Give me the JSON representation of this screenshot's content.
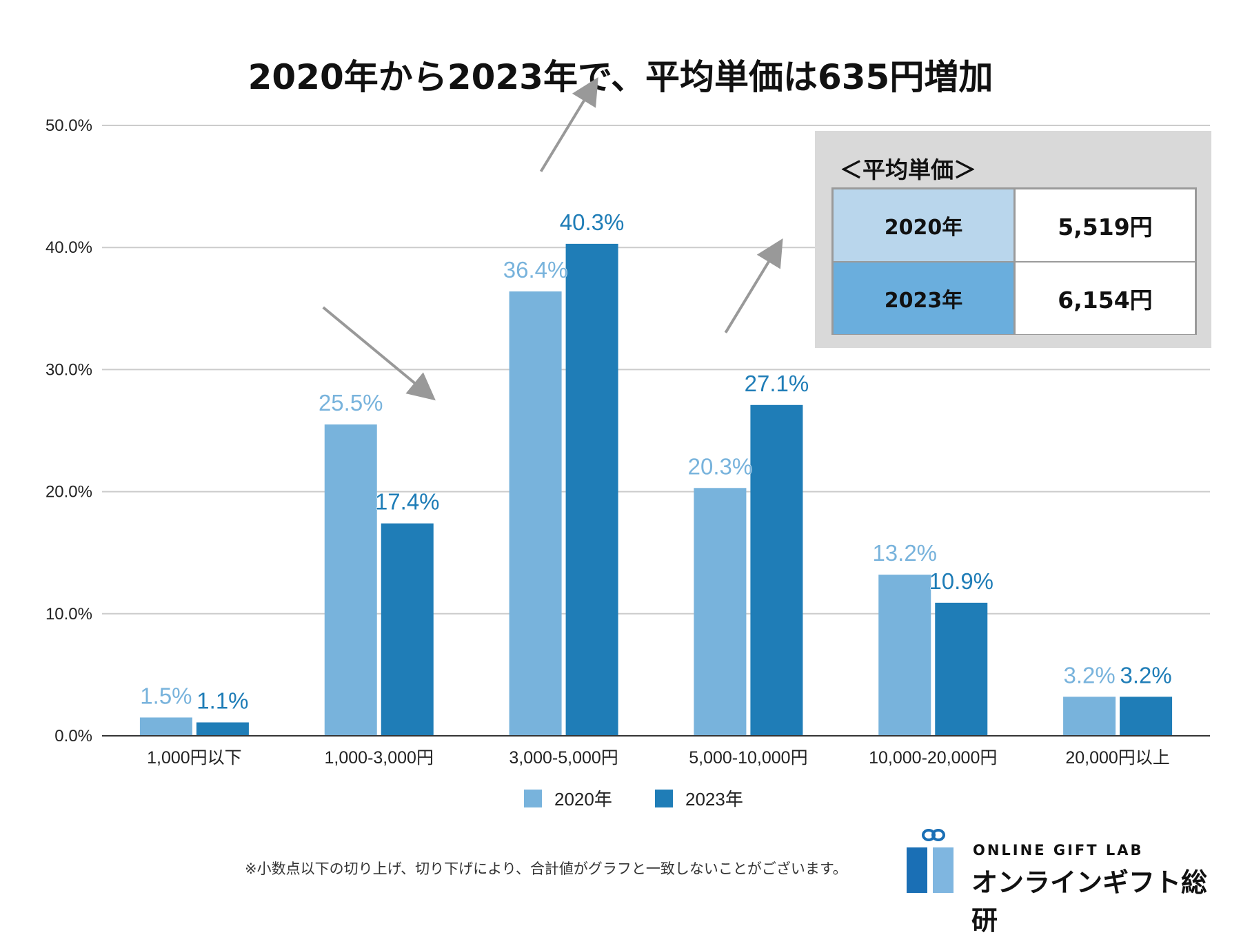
{
  "title": "2020年から2023年で、平均単価は635円増加",
  "chart_data": {
    "type": "bar",
    "title": "2020年から2023年で、平均単価は635円増加",
    "xlabel": "",
    "ylabel": "",
    "ylim": [
      0,
      50
    ],
    "y_ticks": [
      "0.0%",
      "10.0%",
      "20.0%",
      "30.0%",
      "40.0%",
      "50.0%"
    ],
    "grid": true,
    "legend": "bottom-center",
    "categories": [
      "1,000円以下",
      "1,000-3,000円",
      "3,000-5,000円",
      "5,000-10,000円",
      "10,000-20,000円",
      "20,000円以上"
    ],
    "series": [
      {
        "name": "2020年",
        "color": "#78b3dc",
        "values": [
          1.5,
          25.5,
          36.4,
          20.3,
          13.2,
          3.2
        ],
        "labels": [
          "1.5%",
          "25.5%",
          "36.4%",
          "20.3%",
          "13.2%",
          "3.2%"
        ]
      },
      {
        "name": "2023年",
        "color": "#1f7db7",
        "values": [
          1.1,
          17.4,
          40.3,
          27.1,
          10.9,
          3.2
        ],
        "labels": [
          "1.1%",
          "17.4%",
          "40.3%",
          "27.1%",
          "10.9%",
          "3.2%"
        ]
      }
    ],
    "trend_arrows": [
      {
        "category": "1,000-3,000円",
        "direction": "down"
      },
      {
        "category": "3,000-5,000円",
        "direction": "up"
      },
      {
        "category": "5,000-10,000円",
        "direction": "up"
      }
    ]
  },
  "average_price": {
    "title": "＜平均単価＞",
    "rows": [
      {
        "year": "2020年",
        "price": "5,519円"
      },
      {
        "year": "2023年",
        "price": "6,154円"
      }
    ]
  },
  "footnote": "※小数点以下の切り上げ、切り下げにより、合計値がグラフと一致しないことがございます。",
  "logo": {
    "name_en": "ONLINE GIFT LAB",
    "name_ja": "オンラインギフト総研"
  },
  "colors": {
    "series_2020": "#78b3dc",
    "series_2023": "#1f7db7",
    "grid": "#cccccc",
    "arrow": "#999999"
  }
}
